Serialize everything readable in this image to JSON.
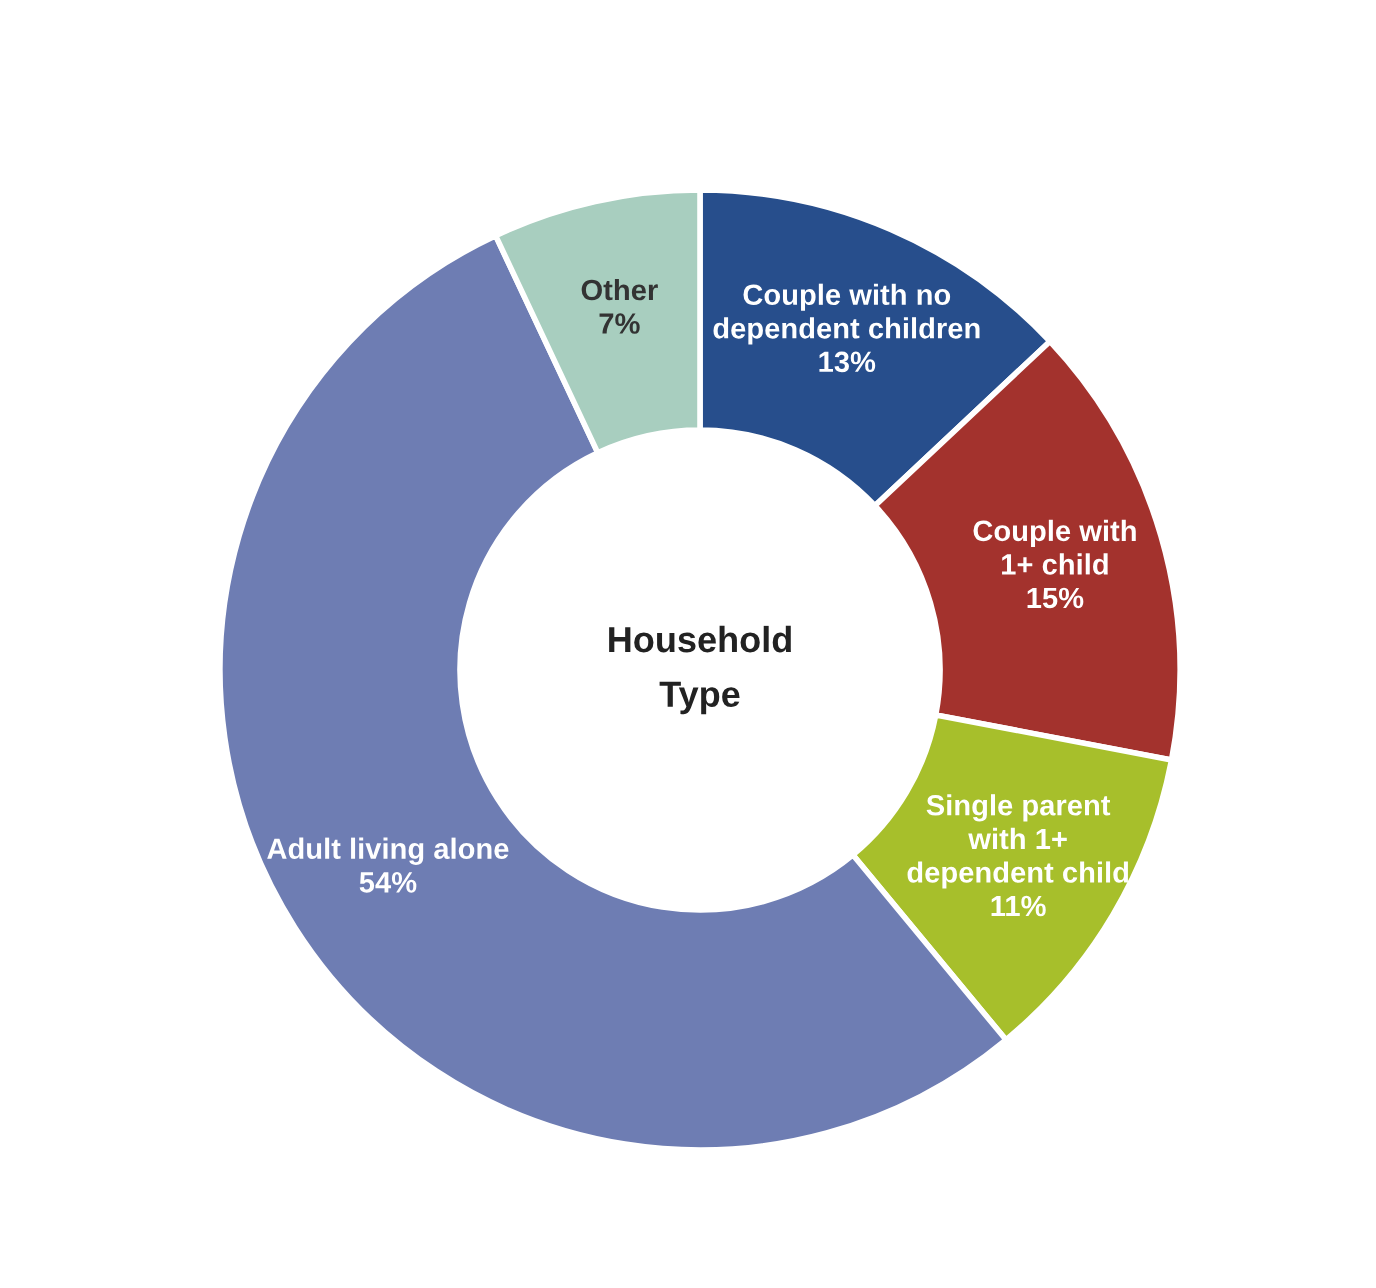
{
  "chart_data": {
    "type": "donut",
    "annotations": [
      "Household\nType"
    ],
    "categories": [
      "Couple with no\ndependent children",
      "Couple with\n1+ child",
      "Single parent\nwith 1+\ndependent child",
      "Adult living alone",
      "Other"
    ],
    "values": [
      13,
      15,
      11,
      54,
      7
    ],
    "colors": [
      "#274e8c",
      "#a3322d",
      "#a7bf2b",
      "#6e7db3",
      "#a8cebf"
    ],
    "value_labels": [
      "13%",
      "15%",
      "11%",
      "54%",
      "7%"
    ],
    "legend": false
  }
}
